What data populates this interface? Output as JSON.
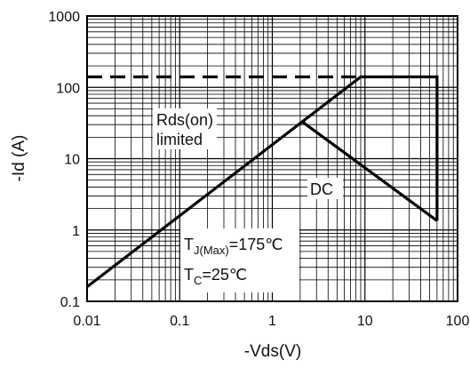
{
  "chart_data": {
    "type": "line",
    "title": "",
    "xlabel": "-Vds(V)",
    "ylabel": "-Id (A)",
    "x_scale": "log",
    "y_scale": "log",
    "xlim": [
      0.01,
      100
    ],
    "ylim": [
      0.1,
      1000
    ],
    "grid": true,
    "x_ticks": [
      "0.01",
      "0.1",
      "1",
      "10",
      "100"
    ],
    "y_ticks": [
      "0.1",
      "1",
      "10",
      "100",
      "1000"
    ],
    "series": [
      {
        "name": "",
        "style": "dashed",
        "points": [
          [
            0.01,
            140
          ],
          [
            9,
            140
          ]
        ]
      },
      {
        "name": "",
        "style": "solid",
        "points": [
          [
            0.01,
            0.16
          ],
          [
            9,
            140
          ],
          [
            60,
            140
          ],
          [
            60,
            1.35
          ]
        ]
      },
      {
        "name": "DC",
        "style": "solid",
        "points": [
          [
            2.1,
            33
          ],
          [
            60,
            1.35
          ]
        ]
      }
    ],
    "annotations": {
      "rds_line1": "Rds(on)",
      "rds_line2": "limited",
      "dc": "DC",
      "tj_main": "T",
      "tj_sub": "J(Max)",
      "tj_value": "=175℃",
      "tc_main": "T",
      "tc_sub": "C",
      "tc_value": "=25℃"
    }
  }
}
